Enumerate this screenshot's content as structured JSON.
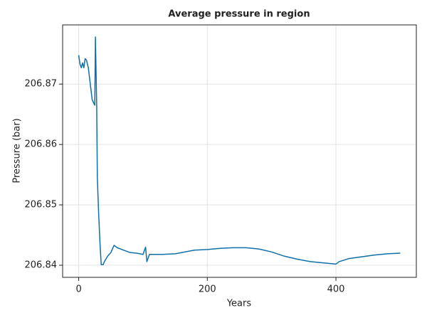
{
  "chart_data": {
    "type": "line",
    "title": "Average pressure in region",
    "xlabel": "Years",
    "ylabel": "Pressure (bar)",
    "x": [
      0,
      2,
      4,
      6,
      8,
      10,
      12,
      15,
      18,
      21,
      24,
      25,
      26,
      27,
      28,
      29,
      31,
      33,
      35,
      38,
      40,
      45,
      50,
      55,
      60,
      70,
      80,
      90,
      100,
      104,
      106,
      110,
      130,
      150,
      180,
      200,
      220,
      240,
      260,
      280,
      300,
      320,
      340,
      360,
      380,
      400,
      405,
      420,
      440,
      460,
      480,
      500
    ],
    "series": [
      {
        "name": "Pressure",
        "color": "#0f6fa8",
        "values": [
          206.8748,
          206.8733,
          206.8727,
          206.8735,
          206.8727,
          206.8742,
          206.874,
          206.8727,
          206.87,
          206.8674,
          206.8667,
          206.8665,
          206.8778,
          206.8721,
          206.8662,
          206.8545,
          206.8486,
          206.8439,
          206.8401,
          206.8401,
          206.8406,
          206.8415,
          206.8421,
          206.8433,
          206.8429,
          206.8425,
          206.8421,
          206.842,
          206.8418,
          206.843,
          206.8406,
          206.8418,
          206.8418,
          206.8419,
          206.8425,
          206.8426,
          206.8428,
          206.8429,
          206.8429,
          206.8427,
          206.8422,
          206.8415,
          206.841,
          206.8406,
          206.8404,
          206.8402,
          206.8406,
          206.8411,
          206.8414,
          206.8417,
          206.8419,
          206.842
        ]
      }
    ],
    "xlim": [
      -25,
      525
    ],
    "ylim": [
      206.838,
      206.8798
    ],
    "xticks": [
      0,
      200,
      400
    ],
    "yticks": [
      206.84,
      206.85,
      206.86,
      206.87
    ],
    "grid": true
  }
}
